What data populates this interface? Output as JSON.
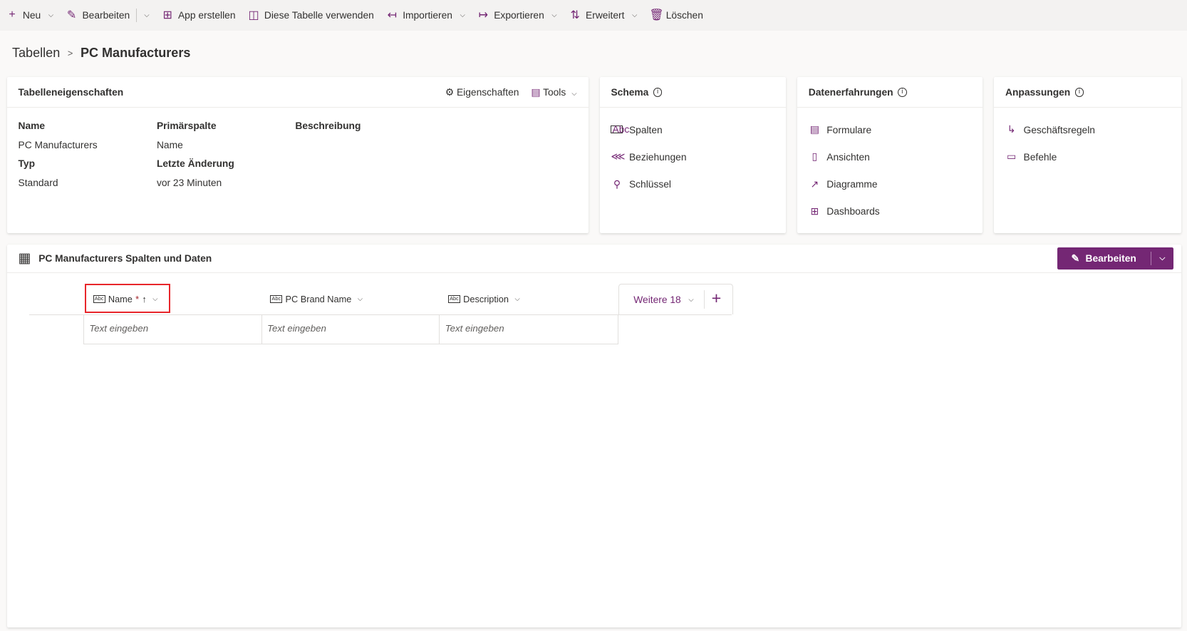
{
  "toolbar": {
    "items": [
      {
        "label": "Neu",
        "icon": "plus-icon",
        "dropdown": true
      },
      {
        "label": "Bearbeiten",
        "icon": "pencil-icon",
        "dropdown": true
      },
      {
        "label": "App erstellen",
        "icon": "app-icon"
      },
      {
        "label": "Diese Tabelle verwenden",
        "icon": "table-use-icon"
      },
      {
        "label": "Importieren",
        "icon": "import-icon",
        "dropdown": true
      },
      {
        "label": "Exportieren",
        "icon": "export-icon",
        "dropdown": true
      },
      {
        "label": "Erweitert",
        "icon": "advanced-icon",
        "dropdown": true
      },
      {
        "label": "Löschen",
        "icon": "trash-icon"
      }
    ]
  },
  "breadcrumb": {
    "parent": "Tabellen",
    "current": "PC Manufacturers"
  },
  "props_card": {
    "title": "Tabelleneigenschaften",
    "eigenschaften": "Eigenschaften",
    "tools": "Tools",
    "name_label": "Name",
    "name_value": "PC Manufacturers",
    "primary_label": "Primärspalte",
    "primary_value": "Name",
    "desc_label": "Beschreibung",
    "type_label": "Typ",
    "type_value": "Standard",
    "changed_label": "Letzte Änderung",
    "changed_value": "vor 23 Minuten"
  },
  "schema": {
    "title": "Schema",
    "items": [
      "Spalten",
      "Beziehungen",
      "Schlüssel"
    ]
  },
  "data_exp": {
    "title": "Datenerfahrungen",
    "items": [
      "Formulare",
      "Ansichten",
      "Diagramme",
      "Dashboards"
    ]
  },
  "custom": {
    "title": "Anpassungen",
    "items": [
      "Geschäftsregeln",
      "Befehle"
    ]
  },
  "grid_card": {
    "title": "PC Manufacturers Spalten und Daten",
    "edit": "Bearbeiten",
    "columns": [
      {
        "label": "Name",
        "required": "*"
      },
      {
        "label": "PC Brand Name"
      },
      {
        "label": "Description"
      }
    ],
    "more": "Weitere 18",
    "placeholder": "Text eingeben"
  },
  "colors": {
    "accent": "#742774",
    "highlight": "#e8262b"
  }
}
